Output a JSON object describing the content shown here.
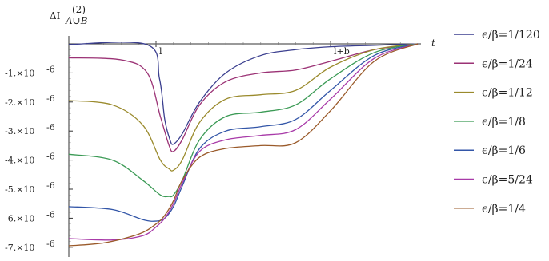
{
  "chart_data": {
    "type": "line",
    "ylabel": "ΔI",
    "ylabel_sup": "(2)",
    "ylabel_sub": "A∪B",
    "xlabel": "t",
    "x_ticks": [
      {
        "value": 1,
        "label": "l"
      },
      {
        "value": 3,
        "label": "l+b"
      }
    ],
    "y_ticks": [
      {
        "value": -1,
        "label": "-1.×10",
        "exp": "-6"
      },
      {
        "value": -2,
        "label": "-2.×10",
        "exp": "-6"
      },
      {
        "value": -3,
        "label": "-3.×10",
        "exp": "-6"
      },
      {
        "value": -4,
        "label": "-4.×10",
        "exp": "-6"
      },
      {
        "value": -5,
        "label": "-5.×10",
        "exp": "-6"
      },
      {
        "value": -6,
        "label": "-6.×10",
        "exp": "-6"
      },
      {
        "value": -7,
        "label": "-7.×10",
        "exp": "-6"
      }
    ],
    "y_unit_note": "y values in units of 10^-6",
    "xlim": [
      0,
      4
    ],
    "ylim": [
      -7.05,
      0.1
    ],
    "legend_position": "right",
    "series": [
      {
        "name": "ϵ/β=1/120",
        "color": "#3b3f8f",
        "x": [
          0,
          0.9,
          1.04,
          1.1,
          1.16,
          1.2,
          1.3,
          1.5,
          1.8,
          2.2,
          2.6,
          3.0,
          3.5,
          4.0
        ],
        "values": [
          -0.02,
          -0.03,
          -1.2,
          -2.6,
          -3.3,
          -3.45,
          -3.1,
          -2.0,
          -1.0,
          -0.4,
          -0.2,
          -0.1,
          -0.05,
          0
        ]
      },
      {
        "name": "ϵ/β=1/24",
        "color": "#9b3275",
        "x": [
          0,
          0.6,
          0.9,
          1.05,
          1.15,
          1.2,
          1.3,
          1.5,
          1.8,
          2.2,
          2.6,
          3.0,
          3.5,
          4.0
        ],
        "values": [
          -0.48,
          -0.55,
          -1.0,
          -2.5,
          -3.5,
          -3.7,
          -3.3,
          -2.1,
          -1.3,
          -1.0,
          -0.9,
          -0.6,
          -0.2,
          0
        ]
      },
      {
        "name": "ϵ/β=1/12",
        "color": "#9a8a2c",
        "x": [
          0,
          0.5,
          0.85,
          1.05,
          1.15,
          1.2,
          1.3,
          1.5,
          1.8,
          2.2,
          2.6,
          3.0,
          3.5,
          4.0
        ],
        "values": [
          -1.95,
          -2.1,
          -2.8,
          -4.0,
          -4.3,
          -4.35,
          -4.0,
          -2.7,
          -1.9,
          -1.75,
          -1.6,
          -0.8,
          -0.2,
          0
        ]
      },
      {
        "name": "ϵ/β=1/8",
        "color": "#3b9a55",
        "x": [
          0,
          0.5,
          0.85,
          1.05,
          1.15,
          1.2,
          1.3,
          1.5,
          1.8,
          2.2,
          2.6,
          3.0,
          3.5,
          4.0
        ],
        "values": [
          -3.8,
          -4.0,
          -4.7,
          -5.2,
          -5.25,
          -5.2,
          -4.7,
          -3.3,
          -2.5,
          -2.35,
          -2.1,
          -1.2,
          -0.3,
          0
        ]
      },
      {
        "name": "ϵ/β=1/6",
        "color": "#3356a8",
        "x": [
          0,
          0.5,
          0.85,
          1.0,
          1.1,
          1.2,
          1.3,
          1.5,
          1.8,
          2.2,
          2.6,
          3.0,
          3.5,
          4.0
        ],
        "values": [
          -5.6,
          -5.7,
          -6.05,
          -6.1,
          -6.0,
          -5.6,
          -4.9,
          -3.6,
          -3.0,
          -2.85,
          -2.6,
          -1.6,
          -0.4,
          0
        ]
      },
      {
        "name": "ϵ/β=5/24",
        "color": "#a83aa8",
        "x": [
          0,
          0.5,
          0.85,
          1.0,
          1.1,
          1.2,
          1.3,
          1.5,
          1.8,
          2.2,
          2.6,
          3.0,
          3.5,
          4.0
        ],
        "values": [
          -6.7,
          -6.75,
          -6.6,
          -6.3,
          -6.0,
          -5.5,
          -4.8,
          -3.7,
          -3.3,
          -3.15,
          -2.95,
          -1.9,
          -0.5,
          0
        ]
      },
      {
        "name": "ϵ/β=1/4",
        "color": "#9a5a2a",
        "x": [
          0,
          0.4,
          0.8,
          1.0,
          1.1,
          1.2,
          1.3,
          1.5,
          1.8,
          2.2,
          2.6,
          3.0,
          3.5,
          4.0
        ],
        "values": [
          -6.95,
          -6.85,
          -6.55,
          -6.2,
          -5.9,
          -5.4,
          -4.7,
          -3.9,
          -3.6,
          -3.5,
          -3.4,
          -2.3,
          -0.6,
          0
        ]
      }
    ]
  }
}
